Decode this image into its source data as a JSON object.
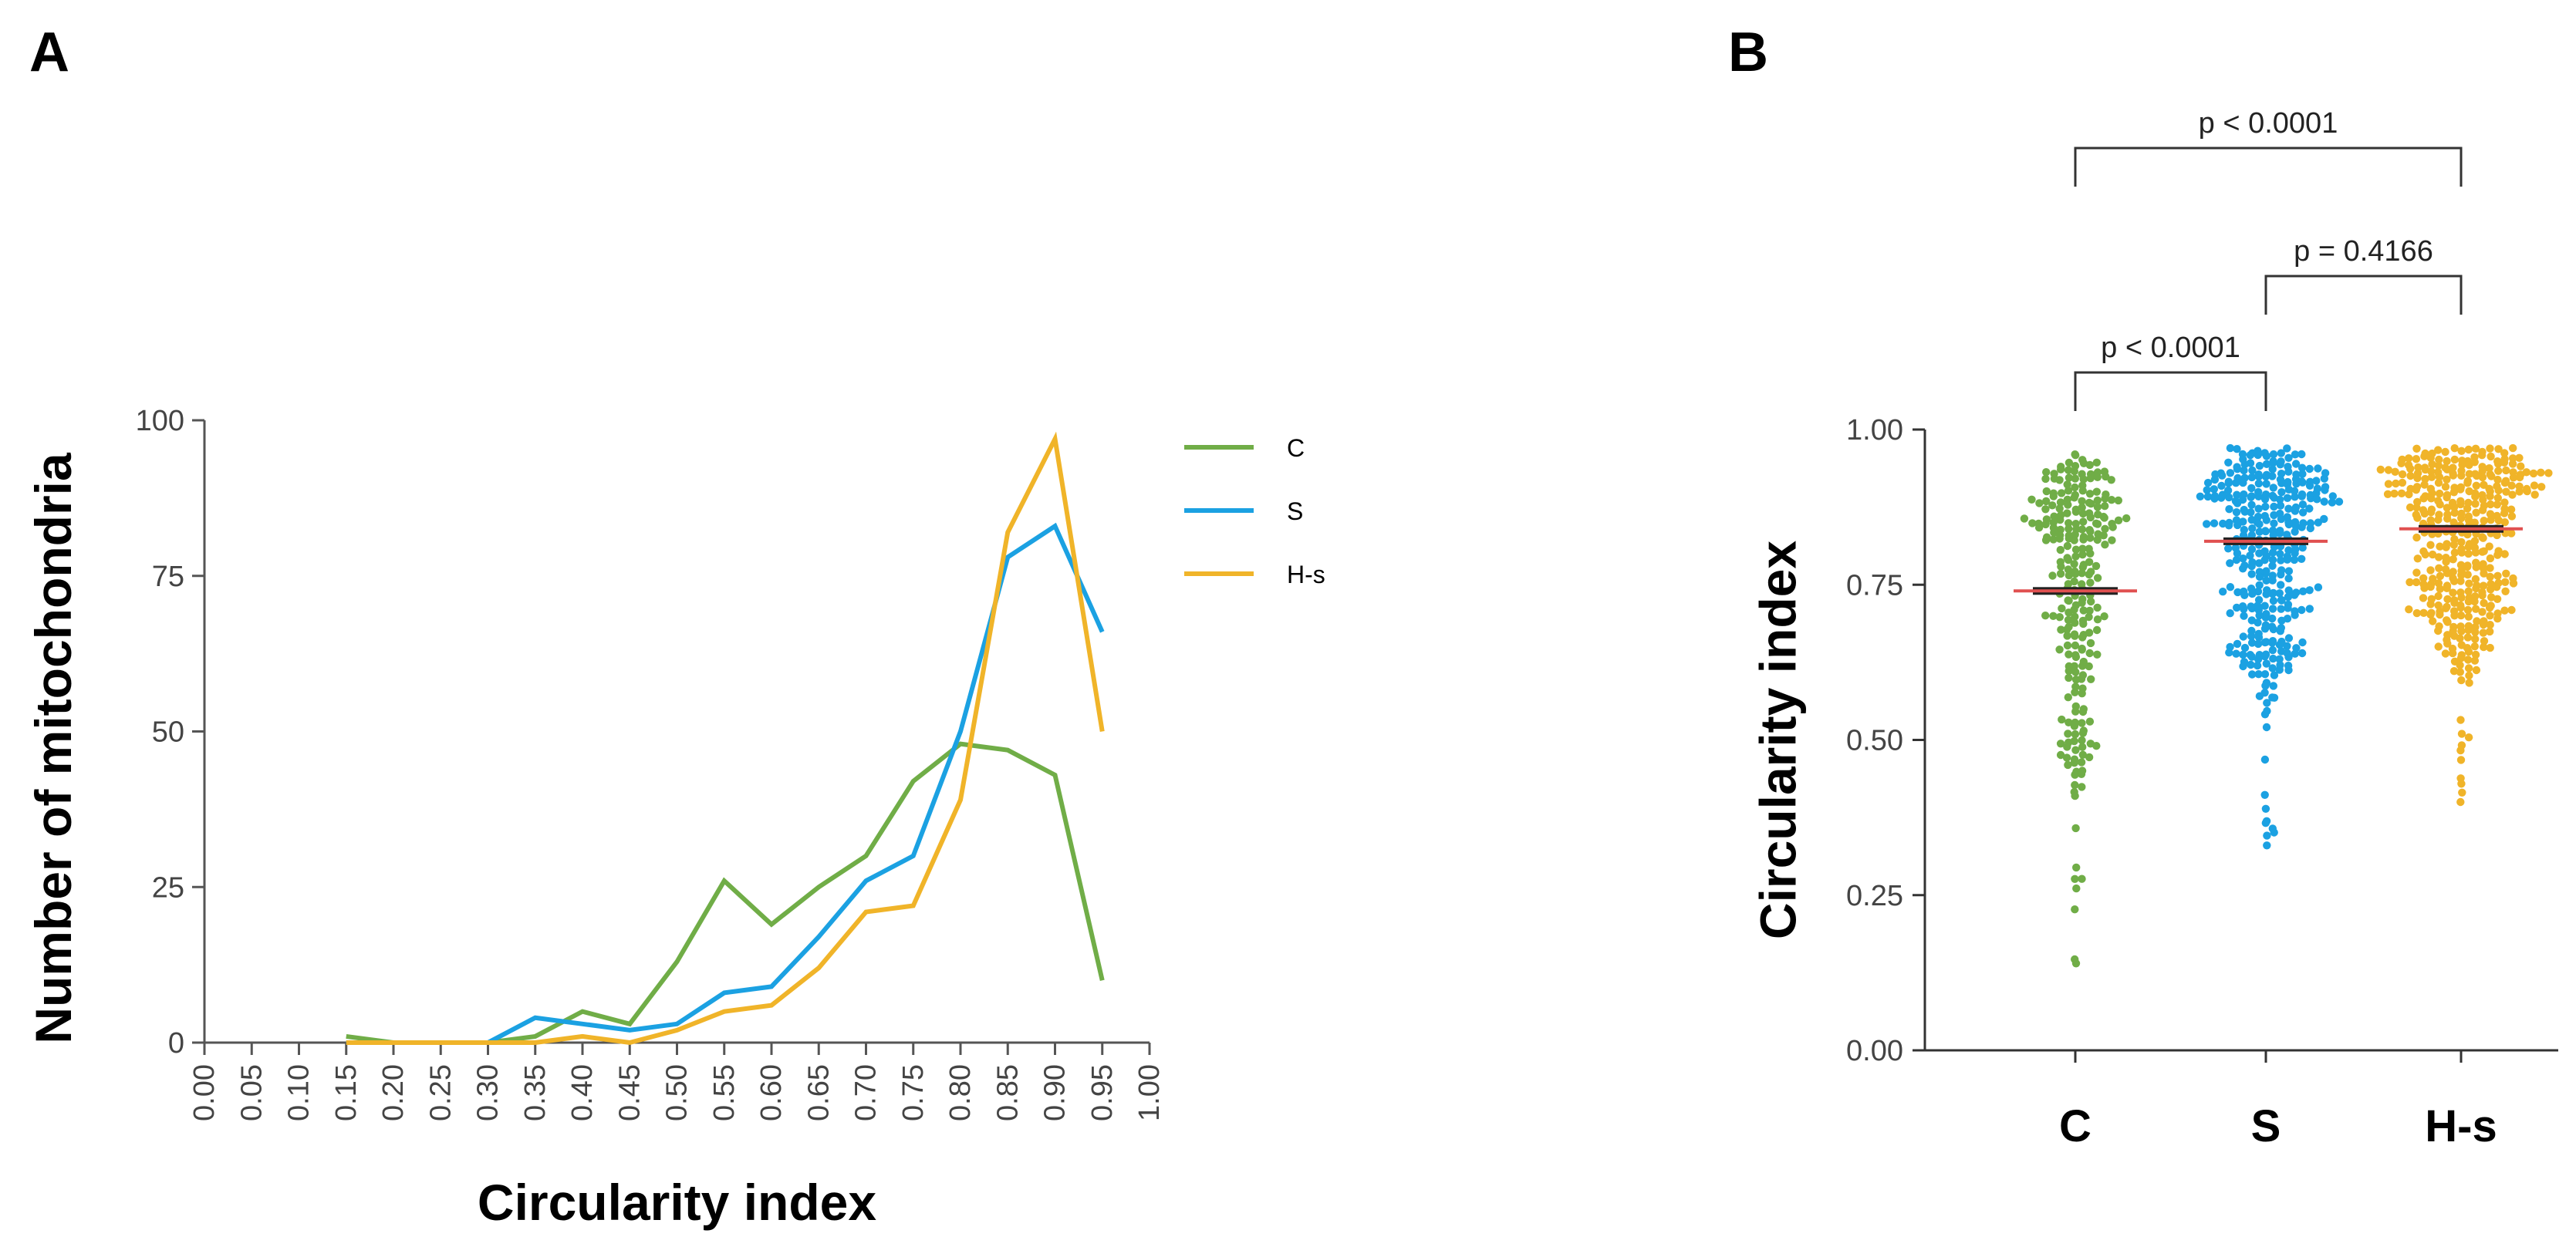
{
  "panels": {
    "a": "A",
    "b": "B"
  },
  "chart_data": [
    {
      "type": "line",
      "panel": "A",
      "xlabel": "Circularity index",
      "ylabel": "Number of mitochondria",
      "xlim": [
        0,
        1
      ],
      "ylim": [
        0,
        100
      ],
      "x_ticks": [
        "0.00",
        "0.05",
        "0.10",
        "0.15",
        "0.20",
        "0.25",
        "0.30",
        "0.35",
        "0.40",
        "0.45",
        "0.50",
        "0.55",
        "0.60",
        "0.65",
        "0.70",
        "0.75",
        "0.80",
        "0.85",
        "0.90",
        "0.95",
        "1.00"
      ],
      "y_ticks": [
        "0",
        "25",
        "50",
        "75",
        "100"
      ],
      "x": [
        0.15,
        0.2,
        0.25,
        0.3,
        0.35,
        0.4,
        0.45,
        0.5,
        0.55,
        0.6,
        0.65,
        0.7,
        0.75,
        0.8,
        0.85,
        0.9,
        0.95
      ],
      "series": [
        {
          "name": "C",
          "label": "C",
          "color": "#70AD47",
          "values": [
            1,
            0,
            0,
            0,
            1,
            5,
            3,
            13,
            26,
            19,
            25,
            30,
            42,
            48,
            47,
            43,
            10
          ]
        },
        {
          "name": "S",
          "label": "S",
          "color": "#1BA1E2",
          "values": [
            0,
            0,
            0,
            0,
            4,
            3,
            2,
            3,
            8,
            9,
            17,
            26,
            30,
            50,
            78,
            83,
            66
          ]
        },
        {
          "name": "H-s",
          "label": "H-s",
          "color": "#F0B429",
          "values": [
            0,
            0,
            0,
            0,
            0,
            1,
            0,
            2,
            5,
            6,
            12,
            21,
            22,
            39,
            82,
            97,
            50
          ]
        }
      ],
      "legend": "right"
    },
    {
      "type": "scatter",
      "panel": "B",
      "ylabel": "Circularity index",
      "ylim": [
        0,
        1
      ],
      "y_ticks": [
        "0.00",
        "0.25",
        "0.50",
        "0.75",
        "1.00"
      ],
      "categories": [
        "C",
        "S",
        "H-s"
      ],
      "groups": [
        {
          "name": "C",
          "color": "#70AD47",
          "mean": 0.74,
          "min": 0.14,
          "max": 0.96,
          "n": 260
        },
        {
          "name": "S",
          "color": "#1BA1E2",
          "mean": 0.82,
          "min": 0.33,
          "max": 0.97,
          "n": 360
        },
        {
          "name": "H-s",
          "color": "#F0B429",
          "mean": 0.84,
          "min": 0.4,
          "max": 0.97,
          "n": 400
        }
      ],
      "mean_line_color": "#E05050",
      "comparisons": [
        {
          "pair": [
            "C",
            "H-s"
          ],
          "label": "p < 0.0001"
        },
        {
          "pair": [
            "S",
            "H-s"
          ],
          "label": "p = 0.4166"
        },
        {
          "pair": [
            "C",
            "S"
          ],
          "label": "p < 0.0001"
        }
      ]
    }
  ]
}
